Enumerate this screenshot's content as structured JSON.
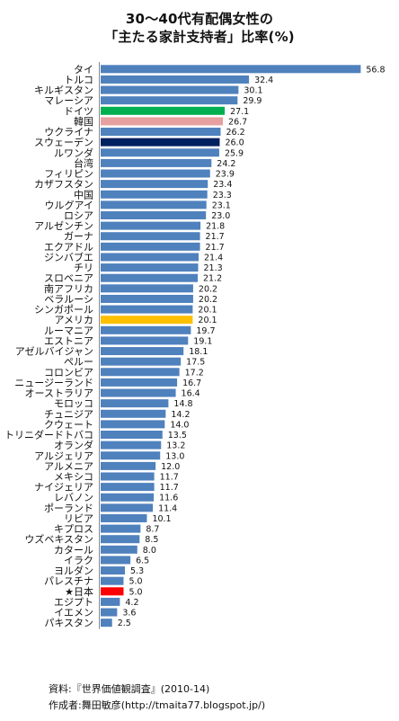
{
  "chart_data": {
    "type": "bar",
    "orientation": "horizontal",
    "title": "30〜40代有配偶女性の",
    "subtitle": "「主たる家計支持者」比率(%)",
    "xlabel": "",
    "ylabel": "",
    "xlim": [
      0,
      60
    ],
    "grid": false,
    "default_color": "#4f81bd",
    "categories": [
      "タイ",
      "トルコ",
      "キルギスタン",
      "マレーシア",
      "ドイツ",
      "韓国",
      "ウクライナ",
      "スウェーデン",
      "ルワンダ",
      "台湾",
      "フィリピン",
      "カザフスタン",
      "中国",
      "ウルグアイ",
      "ロシア",
      "アルゼンチン",
      "ガーナ",
      "エクアドル",
      "ジンバブエ",
      "チリ",
      "スロベニア",
      "南アフリカ",
      "ベラルーシ",
      "シンガポール",
      "アメリカ",
      "ルーマニア",
      "エストニア",
      "アゼルバイジャン",
      "ペルー",
      "コロンビア",
      "ニュージーランド",
      "オーストラリア",
      "モロッコ",
      "チュニジア",
      "クウェート",
      "トリニダードトバコ",
      "オランダ",
      "アルジェリア",
      "アルメニア",
      "メキシコ",
      "ナイジェリア",
      "レバノン",
      "ポーランド",
      "リビア",
      "キプロス",
      "ウズベキスタン",
      "カタール",
      "イラク",
      "ヨルダン",
      "パレスチナ",
      "★日本",
      "エジプト",
      "イエメン",
      "パキスタン"
    ],
    "values": [
      56.8,
      32.4,
      30.1,
      29.9,
      27.1,
      26.7,
      26.2,
      26.0,
      25.9,
      24.2,
      23.9,
      23.4,
      23.3,
      23.1,
      23.0,
      21.8,
      21.7,
      21.7,
      21.4,
      21.3,
      21.2,
      20.2,
      20.2,
      20.1,
      20.1,
      19.7,
      19.1,
      18.1,
      17.5,
      17.2,
      16.7,
      16.4,
      14.8,
      14.2,
      14.0,
      13.5,
      13.2,
      13.0,
      12.0,
      11.7,
      11.7,
      11.6,
      11.4,
      10.1,
      8.7,
      8.5,
      8.0,
      6.5,
      5.3,
      5.0,
      5.0,
      4.2,
      3.6,
      2.5
    ],
    "value_labels": [
      "56.8",
      "32.4",
      "30.1",
      "29.9",
      "27.1",
      "26.7",
      "26.2",
      "26.0",
      "25.9",
      "24.2",
      "23.9",
      "23.4",
      "23.3",
      "23.1",
      "23.0",
      "21.8",
      "21.7",
      "21.7",
      "21.4",
      "21.3",
      "21.2",
      "20.2",
      "20.2",
      "20.1",
      "20.1",
      "19.7",
      "19.1",
      "18.1",
      "17.5",
      "17.2",
      "16.7",
      "16.4",
      "14.8",
      "14.2",
      "14.0",
      "13.5",
      "13.2",
      "13.0",
      "12.0",
      "11.7",
      "11.7",
      "11.6",
      "11.4",
      "10.1",
      "8.7",
      "8.5",
      "8.0",
      "6.5",
      "5.3",
      "5.0",
      "5.0",
      "4.2",
      "3.6",
      "2.5"
    ],
    "highlight_colors": {
      "ドイツ": "#00b050",
      "韓国": "#e6a0a0",
      "スウェーデン": "#002060",
      "アメリカ": "#ffc000",
      "★日本": "#ff0000"
    }
  },
  "footer": {
    "source": "資料:『世界価値観調査』(2010-14)",
    "author": "作成者:舞田敏彦(http://tmaita77.blogspot.jp/)"
  }
}
